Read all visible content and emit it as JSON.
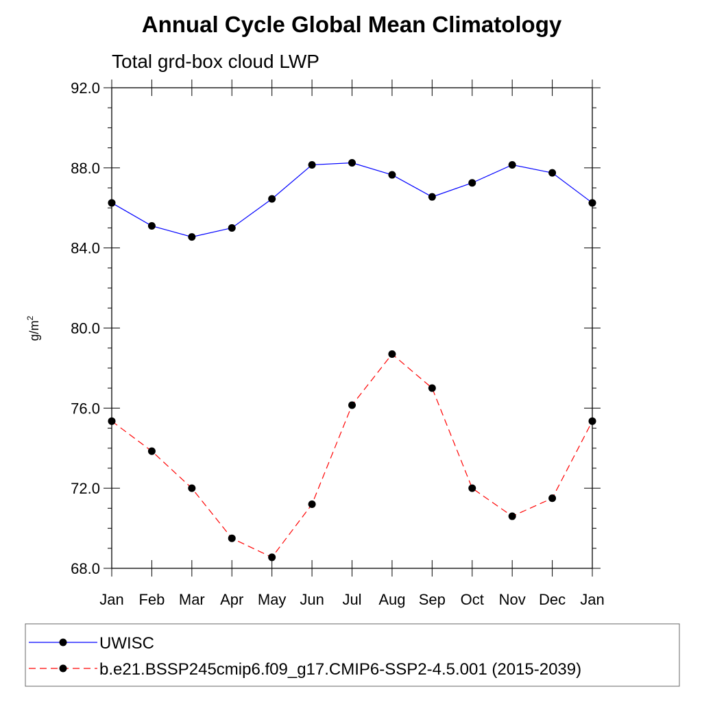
{
  "chart_data": {
    "type": "line",
    "title": "Annual Cycle Global Mean Climatology",
    "subtitle": "Total grd-box cloud LWP",
    "ylabel": "g/m",
    "ylabel_sup": "2",
    "categories": [
      "Jan",
      "Feb",
      "Mar",
      "Apr",
      "May",
      "Jun",
      "Jul",
      "Aug",
      "Sep",
      "Oct",
      "Nov",
      "Dec",
      "Jan"
    ],
    "ylim": [
      68,
      92
    ],
    "yticks": [
      68,
      72,
      76,
      80,
      84,
      88,
      92
    ],
    "ytick_labels": [
      "68.0",
      "72.0",
      "76.0",
      "80.0",
      "84.0",
      "88.0",
      "92.0"
    ],
    "grid": false,
    "legend_position": "bottom",
    "series": [
      {
        "name": "UWISC",
        "color": "#0000ff",
        "style": "solid",
        "values": [
          86.25,
          85.1,
          84.55,
          85.0,
          86.45,
          88.15,
          88.25,
          87.65,
          86.55,
          87.25,
          88.15,
          87.75,
          86.25
        ]
      },
      {
        "name": "b.e21.BSSP245cmip6.f09_g17.CMIP6-SSP2-4.5.001 (2015-2039)",
        "color": "#ff0000",
        "style": "dashed",
        "values": [
          75.35,
          73.85,
          72.0,
          69.5,
          68.55,
          71.2,
          76.15,
          78.7,
          77.0,
          72.0,
          70.6,
          71.5,
          75.35
        ]
      }
    ]
  }
}
